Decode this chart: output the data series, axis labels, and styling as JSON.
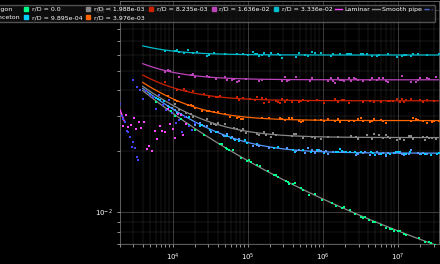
{
  "background_color": "#000000",
  "plot_bg_color": "#000000",
  "grid_color": "#808080",
  "text_color": "#ffffff",
  "Re_lam_max": 2300,
  "Re_min": 2000,
  "Re_max": 35000000,
  "f_min": 0.007,
  "f_max": 0.11,
  "roughness_values": [
    0.0009895,
    0.001988,
    0.003976,
    0.008235,
    0.01636,
    0.03336
  ],
  "roughness_colors": [
    "#5599ff",
    "#888888",
    "#ff6600",
    "#cc2200",
    "#bb44bb",
    "#00bbcc"
  ],
  "curve_colors_top2": [
    "#4466ff",
    "#4488cc"
  ],
  "scatter_oregon_color": "#4444ff",
  "scatter_princeton_color": "#ff44ff",
  "scatter_smooth_color": "#00ff88",
  "scatter_9895_color": "#00ccff",
  "laminar_color": "#ff44ff",
  "smooth_pipe_color": "#888888",
  "legend_fontsize": 4.5,
  "tick_fontsize": 5
}
